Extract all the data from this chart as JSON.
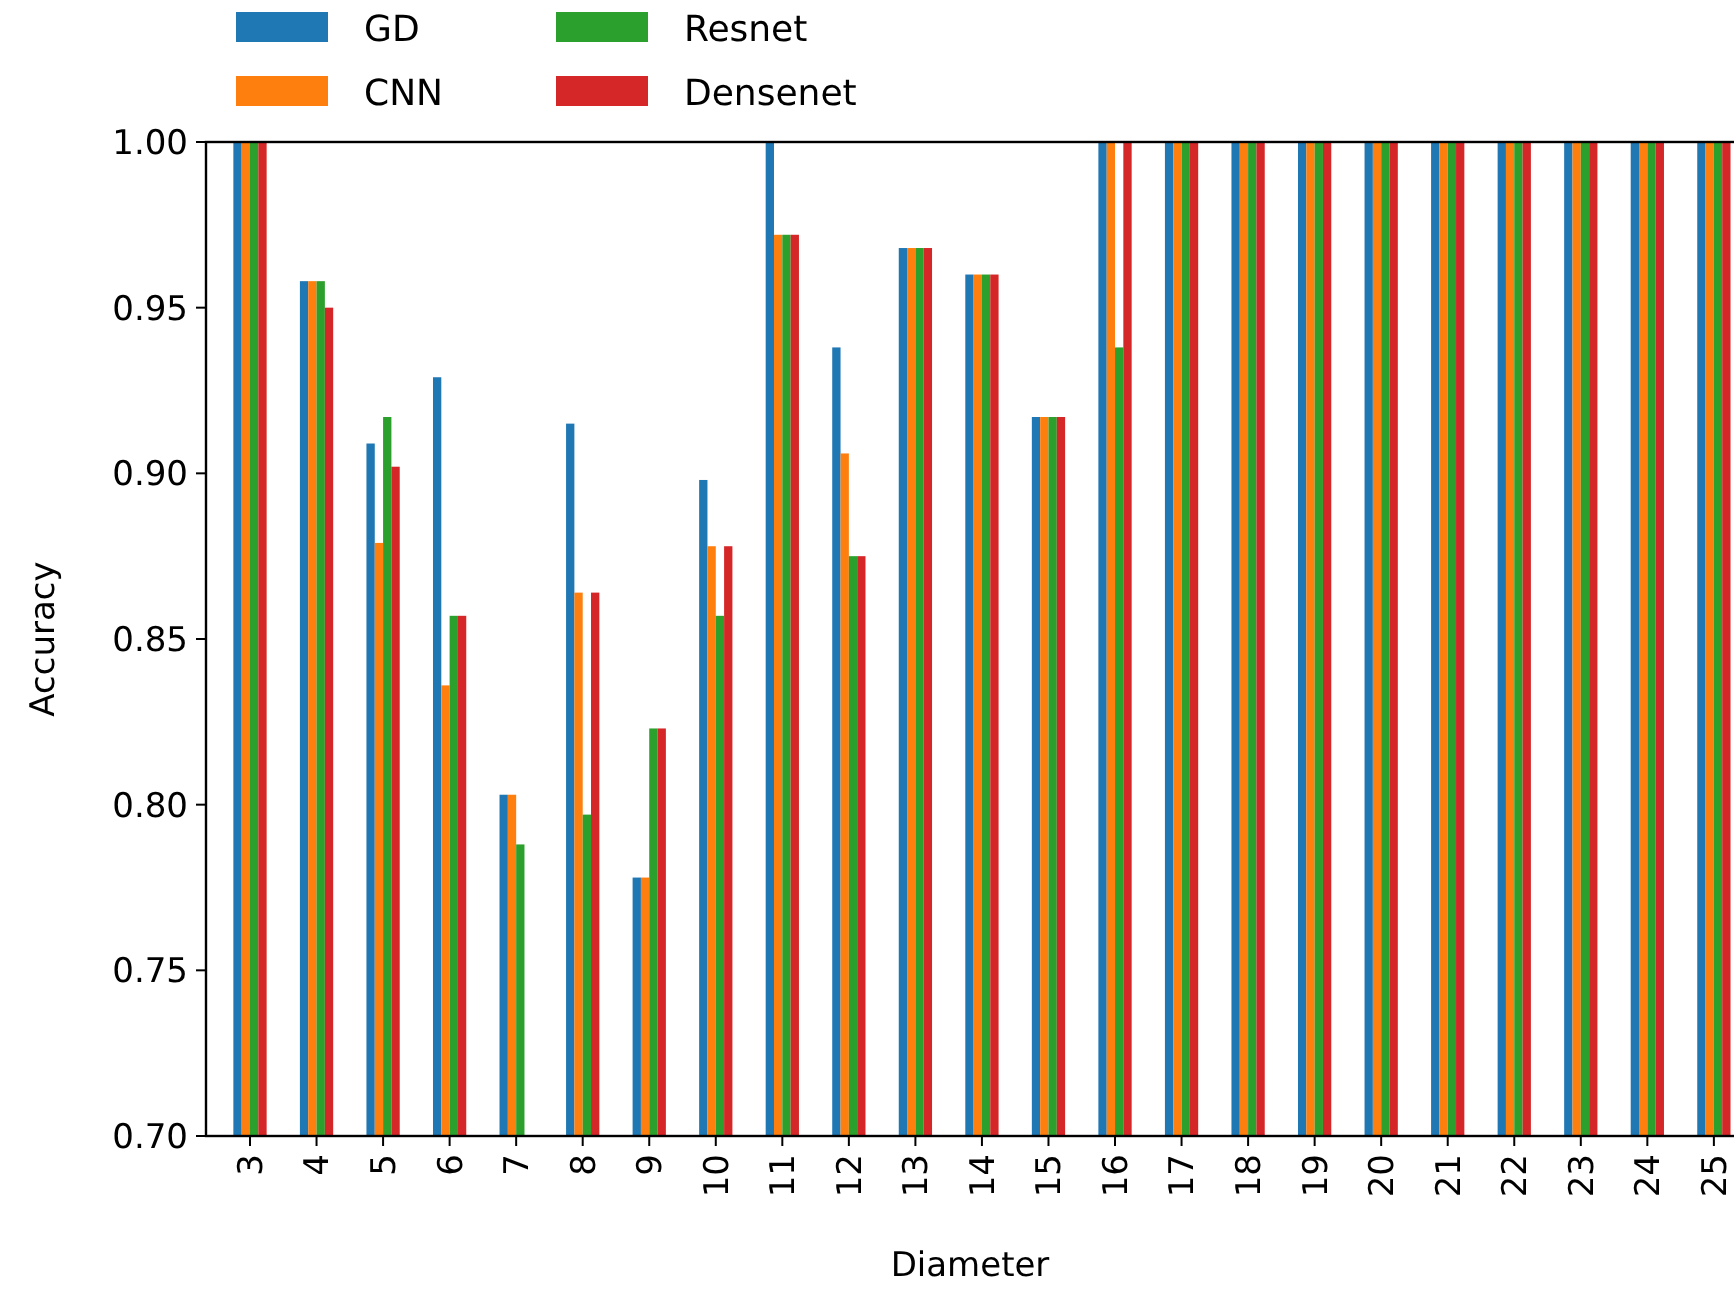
{
  "chart_data": {
    "type": "bar",
    "xlabel": "Diameter",
    "ylabel": "Accuracy",
    "categories": [
      "3",
      "4",
      "5",
      "6",
      "7",
      "8",
      "9",
      "10",
      "11",
      "12",
      "13",
      "14",
      "15",
      "16",
      "17",
      "18",
      "19",
      "20",
      "21",
      "22",
      "23",
      "24",
      "25"
    ],
    "series": [
      {
        "name": "GD",
        "color": "#1f77b4",
        "values": [
          1.0,
          0.958,
          0.909,
          0.929,
          0.803,
          0.915,
          0.778,
          0.898,
          1.0,
          0.938,
          0.968,
          0.96,
          0.917,
          1.0,
          1.0,
          1.0,
          1.0,
          1.0,
          1.0,
          1.0,
          1.0,
          1.0,
          1.0
        ]
      },
      {
        "name": "CNN",
        "color": "#ff7f0e",
        "values": [
          1.0,
          0.958,
          0.879,
          0.836,
          0.803,
          0.864,
          0.778,
          0.878,
          0.972,
          0.906,
          0.968,
          0.96,
          0.917,
          1.0,
          1.0,
          1.0,
          1.0,
          1.0,
          1.0,
          1.0,
          1.0,
          1.0,
          1.0
        ]
      },
      {
        "name": "Resnet",
        "color": "#2ca02c",
        "values": [
          1.0,
          0.958,
          0.917,
          0.857,
          0.788,
          0.797,
          0.823,
          0.857,
          0.972,
          0.875,
          0.968,
          0.96,
          0.917,
          0.938,
          1.0,
          1.0,
          1.0,
          1.0,
          1.0,
          1.0,
          1.0,
          1.0,
          1.0
        ]
      },
      {
        "name": "Densenet",
        "color": "#d62728",
        "values": [
          1.0,
          0.95,
          0.902,
          0.857,
          null,
          0.864,
          0.823,
          0.878,
          0.972,
          0.875,
          0.968,
          0.96,
          0.917,
          1.0,
          1.0,
          1.0,
          1.0,
          1.0,
          1.0,
          1.0,
          1.0,
          1.0,
          1.0
        ]
      }
    ],
    "ylim": [
      0.7,
      1.0
    ],
    "yticks": [
      {
        "value": 0.7,
        "label": "0.70"
      },
      {
        "value": 0.75,
        "label": "0.75"
      },
      {
        "value": 0.8,
        "label": "0.80"
      },
      {
        "value": 0.85,
        "label": "0.85"
      },
      {
        "value": 0.9,
        "label": "0.90"
      },
      {
        "value": 0.95,
        "label": "0.95"
      },
      {
        "value": 1.0,
        "label": "1.00"
      }
    ],
    "grid": false,
    "legend": "top left"
  }
}
